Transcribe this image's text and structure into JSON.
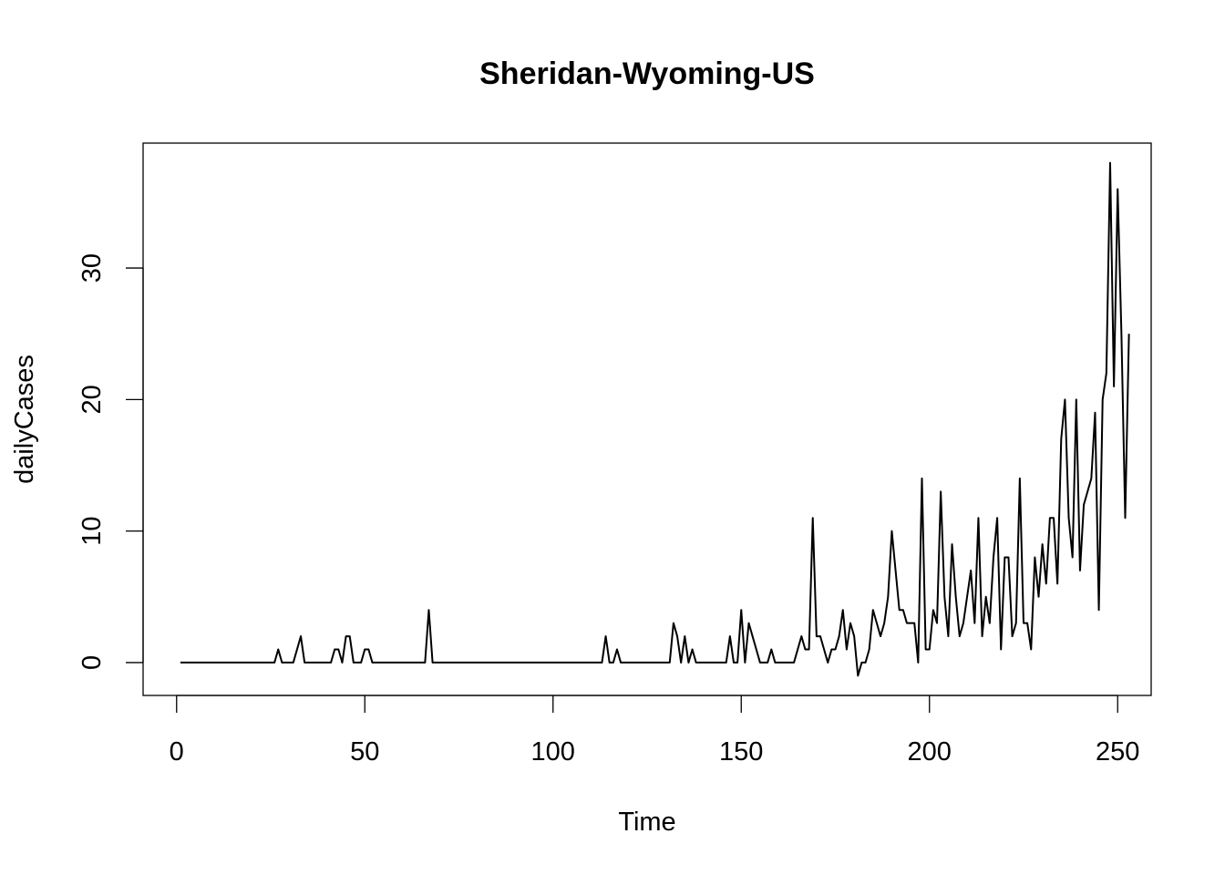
{
  "chart_data": {
    "type": "line",
    "title": "Sheridan-Wyoming-US",
    "xlabel": "Time",
    "ylabel": "dailyCases",
    "xlim": [
      -8.9,
      258.9
    ],
    "ylim": [
      -2.5,
      39.5
    ],
    "xticks": [
      0,
      50,
      100,
      150,
      200,
      250
    ],
    "yticks": [
      0,
      10,
      20,
      30
    ],
    "grid": false,
    "legend": "none",
    "series": [
      {
        "x_start": 1,
        "values": [
          0,
          0,
          0,
          0,
          0,
          0,
          0,
          0,
          0,
          0,
          0,
          0,
          0,
          0,
          0,
          0,
          0,
          0,
          0,
          0,
          0,
          0,
          0,
          0,
          0,
          0,
          1,
          0,
          0,
          0,
          0,
          1,
          2,
          0,
          0,
          0,
          0,
          0,
          0,
          0,
          0,
          1,
          1,
          0,
          2,
          2,
          0,
          0,
          0,
          1,
          1,
          0,
          0,
          0,
          0,
          0,
          0,
          0,
          0,
          0,
          0,
          0,
          0,
          0,
          0,
          0,
          4,
          0,
          0,
          0,
          0,
          0,
          0,
          0,
          0,
          0,
          0,
          0,
          0,
          0,
          0,
          0,
          0,
          0,
          0,
          0,
          0,
          0,
          0,
          0,
          0,
          0,
          0,
          0,
          0,
          0,
          0,
          0,
          0,
          0,
          0,
          0,
          0,
          0,
          0,
          0,
          0,
          0,
          0,
          0,
          0,
          0,
          0,
          2,
          0,
          0,
          1,
          0,
          0,
          0,
          0,
          0,
          0,
          0,
          0,
          0,
          0,
          0,
          0,
          0,
          0,
          3,
          2,
          0,
          2,
          0,
          1,
          0,
          0,
          0,
          0,
          0,
          0,
          0,
          0,
          0,
          2,
          0,
          0,
          4,
          0,
          3,
          2,
          1,
          0,
          0,
          0,
          1,
          0,
          0,
          0,
          0,
          0,
          0,
          1,
          2,
          1,
          1,
          11,
          2,
          2,
          1,
          0,
          1,
          1,
          2,
          4,
          1,
          3,
          2,
          -1,
          0,
          0,
          1,
          4,
          3,
          2,
          3,
          5,
          10,
          7,
          4,
          4,
          3,
          3,
          3,
          0,
          14,
          1,
          1,
          4,
          3,
          13,
          5,
          2,
          9,
          5,
          2,
          3,
          5,
          7,
          3,
          11,
          2,
          5,
          3,
          8,
          11,
          1,
          8,
          8,
          2,
          3,
          14,
          3,
          3,
          1,
          8,
          5,
          9,
          6,
          11,
          11,
          6,
          17,
          20,
          11,
          8,
          20,
          7,
          12,
          13,
          14,
          19,
          4,
          20,
          22,
          38,
          21,
          36,
          25,
          11,
          25
        ]
      }
    ]
  }
}
